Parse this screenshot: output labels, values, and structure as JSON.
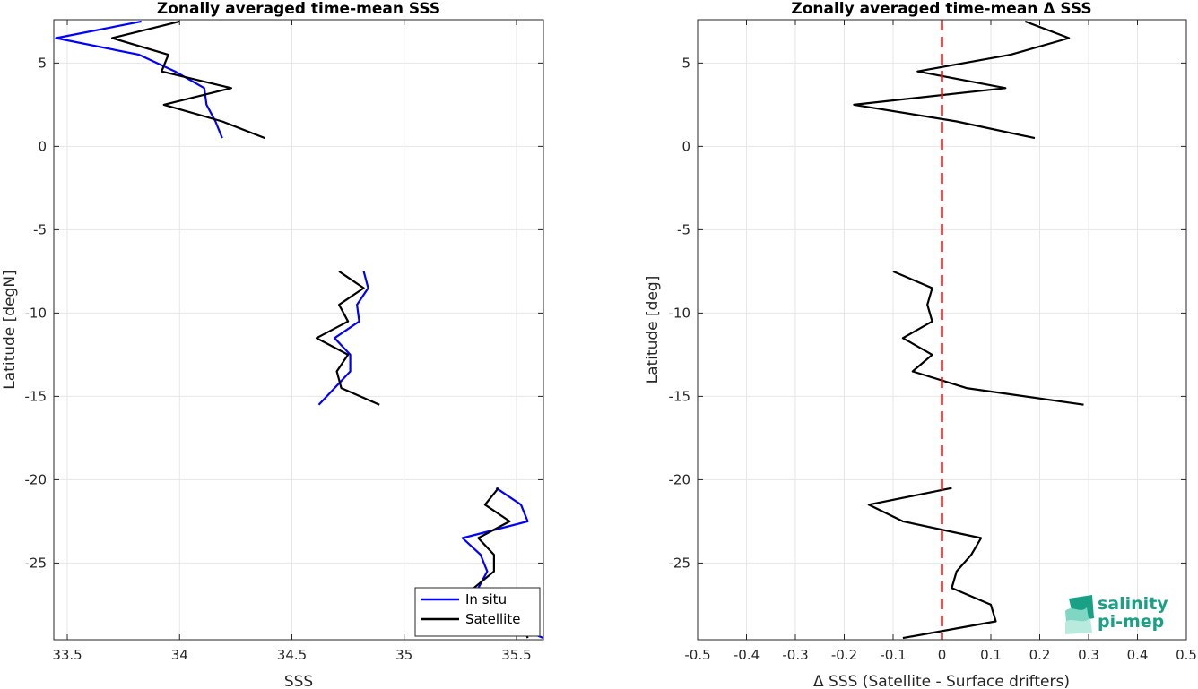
{
  "chart_data": [
    {
      "type": "line",
      "title": "Zonally averaged time-mean SSS",
      "xlabel": "SSS",
      "ylabel": "Latitude [degN]",
      "xlim": [
        33.44,
        35.62
      ],
      "ylim": [
        -29.6,
        7.6
      ],
      "xticks": [
        33.5,
        34,
        34.5,
        35,
        35.5
      ],
      "xtick_labels": [
        "33.5",
        "34",
        "34.5",
        "35",
        "35.5"
      ],
      "yticks": [
        5,
        0,
        -5,
        -10,
        -15,
        -20,
        -25
      ],
      "ytick_labels": [
        "5",
        "0",
        "-5",
        "-10",
        "-15",
        "-20",
        "-25"
      ],
      "grid": true,
      "legend_position": "bottom-right",
      "series": [
        {
          "name": "In situ",
          "color": "#0000ff",
          "segments": [
            [
              [
                33.83,
                7.5
              ],
              [
                33.45,
                6.5
              ],
              [
                33.82,
                5.5
              ],
              [
                33.98,
                4.5
              ],
              [
                34.11,
                3.5
              ],
              [
                34.12,
                2.5
              ],
              [
                34.16,
                1.5
              ],
              [
                34.19,
                0.5
              ]
            ],
            [
              [
                34.82,
                -7.5
              ],
              [
                34.84,
                -8.5
              ],
              [
                34.79,
                -9.5
              ],
              [
                34.8,
                -10.5
              ],
              [
                34.69,
                -11.5
              ],
              [
                34.76,
                -12.5
              ],
              [
                34.76,
                -13.5
              ],
              [
                34.69,
                -14.5
              ],
              [
                34.62,
                -15.5
              ]
            ],
            [
              [
                35.41,
                -20.5
              ],
              [
                35.52,
                -21.5
              ],
              [
                35.55,
                -22.5
              ],
              [
                35.26,
                -23.5
              ],
              [
                35.34,
                -24.5
              ],
              [
                35.37,
                -25.5
              ],
              [
                35.33,
                -26.5
              ],
              [
                35.38,
                -27.5
              ],
              [
                35.44,
                -28.5
              ],
              [
                35.62,
                -29.5
              ]
            ]
          ]
        },
        {
          "name": "Satellite",
          "color": "#000000",
          "segments": [
            [
              [
                34.0,
                7.5
              ],
              [
                33.7,
                6.5
              ],
              [
                33.95,
                5.5
              ],
              [
                33.92,
                4.5
              ],
              [
                34.23,
                3.5
              ],
              [
                33.93,
                2.5
              ],
              [
                34.19,
                1.5
              ],
              [
                34.38,
                0.5
              ]
            ],
            [
              [
                34.71,
                -7.5
              ],
              [
                34.82,
                -8.5
              ],
              [
                34.71,
                -9.5
              ],
              [
                34.75,
                -10.5
              ],
              [
                34.61,
                -11.5
              ],
              [
                34.75,
                -12.5
              ],
              [
                34.7,
                -13.5
              ],
              [
                34.72,
                -14.5
              ],
              [
                34.89,
                -15.5
              ]
            ],
            [
              [
                35.42,
                -20.5
              ],
              [
                35.36,
                -21.5
              ],
              [
                35.47,
                -22.5
              ],
              [
                35.33,
                -23.5
              ],
              [
                35.4,
                -24.5
              ],
              [
                35.4,
                -25.5
              ],
              [
                35.31,
                -26.5
              ],
              [
                35.36,
                -27.5
              ],
              [
                35.52,
                -28.5
              ],
              [
                35.55,
                -29.5
              ]
            ]
          ]
        }
      ]
    },
    {
      "type": "line",
      "title": "Zonally averaged time-mean Δ SSS",
      "xlabel": "Δ SSS (Satellite - Surface drifters)",
      "ylabel": "Latitude [deg]",
      "xlim": [
        -0.5,
        0.5
      ],
      "ylim": [
        -29.6,
        7.6
      ],
      "xticks": [
        -0.5,
        -0.4,
        -0.3,
        -0.2,
        -0.1,
        0,
        0.1,
        0.2,
        0.3,
        0.4,
        0.5
      ],
      "xtick_labels": [
        "-0.5",
        "-0.4",
        "-0.3",
        "-0.2",
        "-0.1",
        "0",
        "0.1",
        "0.2",
        "0.3",
        "0.4",
        "0.5"
      ],
      "yticks": [
        5,
        0,
        -5,
        -10,
        -15,
        -20,
        -25
      ],
      "ytick_labels": [
        "5",
        "0",
        "-5",
        "-10",
        "-15",
        "-20",
        "-25"
      ],
      "grid": true,
      "reference_line": {
        "x": 0,
        "color": "#e41a1c",
        "style": "dashed"
      },
      "series": [
        {
          "color": "#000000",
          "segments": [
            [
              [
                0.17,
                7.5
              ],
              [
                0.26,
                6.5
              ],
              [
                0.14,
                5.5
              ],
              [
                -0.05,
                4.5
              ],
              [
                0.13,
                3.5
              ],
              [
                -0.18,
                2.5
              ],
              [
                0.03,
                1.5
              ],
              [
                0.19,
                0.5
              ]
            ],
            [
              [
                -0.1,
                -7.5
              ],
              [
                -0.02,
                -8.5
              ],
              [
                -0.03,
                -9.5
              ],
              [
                -0.02,
                -10.5
              ],
              [
                -0.08,
                -11.5
              ],
              [
                -0.02,
                -12.5
              ],
              [
                -0.06,
                -13.5
              ],
              [
                0.05,
                -14.5
              ],
              [
                0.29,
                -15.5
              ]
            ],
            [
              [
                0.02,
                -20.5
              ],
              [
                -0.15,
                -21.5
              ],
              [
                -0.08,
                -22.5
              ],
              [
                0.08,
                -23.5
              ],
              [
                0.06,
                -24.5
              ],
              [
                0.03,
                -25.5
              ],
              [
                0.02,
                -26.5
              ],
              [
                0.1,
                -27.5
              ],
              [
                0.11,
                -28.5
              ],
              [
                -0.08,
                -29.5
              ]
            ]
          ]
        }
      ]
    }
  ],
  "logo": {
    "line1": "salinity",
    "line2": "pi-mep",
    "text_color": "#1aa085",
    "mark_colors": [
      "#1aa085",
      "#7fd6c2",
      "#b8eadd"
    ]
  }
}
